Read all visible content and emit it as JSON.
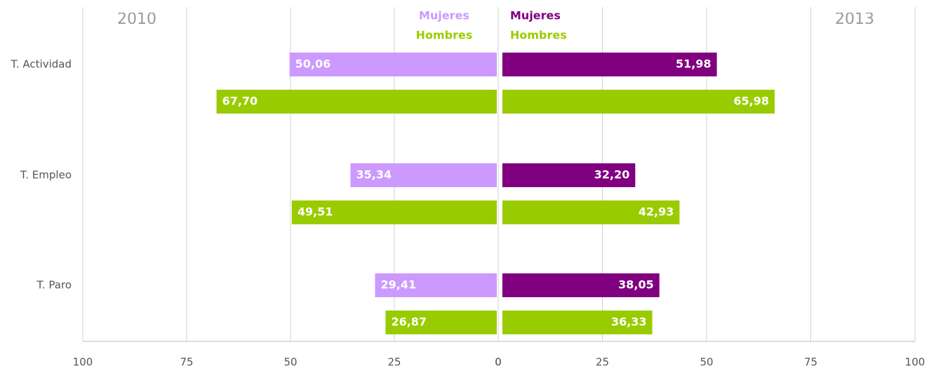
{
  "chart_data": [
    {
      "type": "bar",
      "title": "2010",
      "categories": [
        "T. Actividad",
        "T. Empleo",
        "T. Paro"
      ],
      "series": [
        {
          "name": "Mujeres",
          "color": "#cc99ff",
          "values": [
            50.06,
            35.34,
            29.41
          ],
          "value_labels": [
            "50,06",
            "35,34",
            "29,41"
          ]
        },
        {
          "name": "Hombres",
          "color": "#99cc00",
          "values": [
            67.7,
            49.51,
            26.87
          ],
          "value_labels": [
            "67,70",
            "49,51",
            "26,87"
          ]
        }
      ],
      "xlim": [
        100,
        0
      ],
      "xticks": [
        100,
        75,
        50,
        25,
        0
      ],
      "grid": true
    },
    {
      "type": "bar",
      "title": "2013",
      "series": [
        {
          "name": "Mujeres",
          "color": "#800080",
          "values": [
            51.98,
            32.2,
            38.05
          ],
          "value_labels": [
            "51,98",
            "32,20",
            "38,05"
          ]
        },
        {
          "name": "Hombres",
          "color": "#99cc00",
          "values": [
            65.98,
            42.93,
            36.33
          ],
          "value_labels": [
            "65,98",
            "42,93",
            "36,33"
          ]
        }
      ],
      "xlim": [
        0,
        100
      ],
      "xticks": [
        0,
        25,
        50,
        75,
        100
      ],
      "grid": true
    }
  ]
}
